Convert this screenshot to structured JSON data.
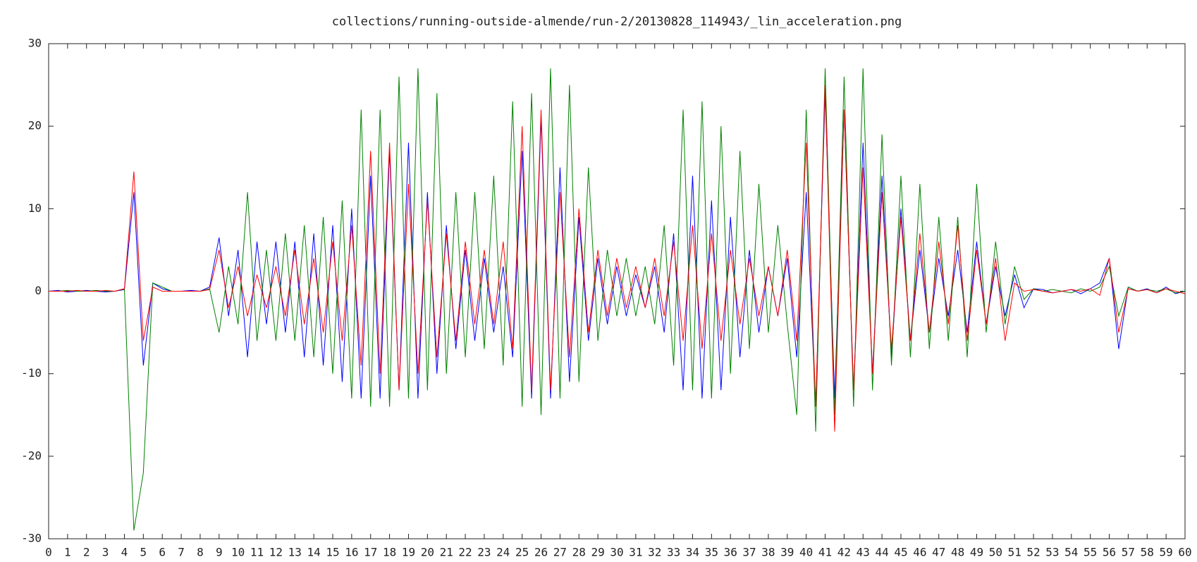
{
  "chart_data": {
    "type": "line",
    "title": "collections/running-outside-almende/run-2/20130828_114943/_lin_acceleration.png",
    "x": [
      0,
      0.5,
      1,
      1.5,
      2,
      2.5,
      3,
      3.5,
      4,
      4.5,
      5,
      5.5,
      6,
      6.5,
      7,
      7.5,
      8,
      8.5,
      9,
      9.5,
      10,
      10.5,
      11,
      11.5,
      12,
      12.5,
      13,
      13.5,
      14,
      14.5,
      15,
      15.5,
      16,
      16.5,
      17,
      17.5,
      18,
      18.5,
      19,
      19.5,
      20,
      20.5,
      21,
      21.5,
      22,
      22.5,
      23,
      23.5,
      24,
      24.5,
      25,
      25.5,
      26,
      26.5,
      27,
      27.5,
      28,
      28.5,
      29,
      29.5,
      30,
      30.5,
      31,
      31.5,
      32,
      32.5,
      33,
      33.5,
      34,
      34.5,
      35,
      35.5,
      36,
      36.5,
      37,
      37.5,
      38,
      38.5,
      39,
      39.5,
      40,
      40.5,
      41,
      41.5,
      42,
      42.5,
      43,
      43.5,
      44,
      44.5,
      45,
      45.5,
      46,
      46.5,
      47,
      47.5,
      48,
      48.5,
      49,
      49.5,
      50,
      50.5,
      51,
      51.5,
      52,
      52.5,
      53,
      53.5,
      54,
      54.5,
      55,
      55.5,
      56,
      56.5,
      57,
      57.5,
      58,
      58.5,
      59,
      59.5,
      60
    ],
    "series": [
      {
        "color": "#0000ff",
        "values": [
          0,
          0.1,
          -0.1,
          0,
          0.1,
          0,
          -0.1,
          0,
          0.2,
          12,
          -9,
          1,
          0.3,
          0,
          0,
          0.1,
          0,
          0.5,
          6.5,
          -3,
          5,
          -8,
          6,
          -4,
          6,
          -5,
          6,
          -8,
          7,
          -9,
          8,
          -11,
          10,
          -13,
          14,
          -13,
          17,
          -12,
          18,
          -13,
          12,
          -10,
          8,
          -7,
          5,
          -6,
          4,
          -5,
          3,
          -8,
          17,
          -13,
          21,
          -13,
          15,
          -11,
          9,
          -6,
          4,
          -4,
          3,
          -3,
          2,
          -2,
          3,
          -5,
          7,
          -12,
          14,
          -13,
          11,
          -12,
          9,
          -8,
          5,
          -5,
          3,
          -3,
          4,
          -8,
          12,
          -14,
          24,
          -13,
          22,
          -12,
          18,
          -10,
          14,
          -8,
          10,
          -6,
          5,
          -5,
          4,
          -3,
          5,
          -5,
          6,
          -4,
          3,
          -3,
          2,
          -2,
          0.3,
          0.2,
          -0.2,
          0,
          0.2,
          -0.3,
          0.3,
          1,
          4,
          -7,
          0.5,
          0,
          0.3,
          -0.2,
          0.5,
          -0.3,
          0
        ]
      },
      {
        "color": "#008000",
        "values": [
          0,
          0,
          0.1,
          0,
          0,
          0.1,
          0,
          0,
          0.3,
          -29,
          -22,
          1,
          0.5,
          0,
          0,
          0,
          0,
          0.3,
          -5,
          3,
          -4,
          12,
          -6,
          5,
          -6,
          7,
          -6,
          8,
          -8,
          9,
          -10,
          11,
          -13,
          22,
          -14,
          22,
          -14,
          26,
          -13,
          27,
          -12,
          24,
          -10,
          12,
          -8,
          12,
          -7,
          14,
          -9,
          23,
          -14,
          24,
          -15,
          27,
          -13,
          25,
          -11,
          15,
          -6,
          5,
          -3,
          4,
          -3,
          3,
          -4,
          8,
          -9,
          22,
          -12,
          23,
          -13,
          20,
          -10,
          17,
          -7,
          13,
          -5,
          8,
          -4,
          -15,
          22,
          -17,
          27,
          -15,
          26,
          -14,
          27,
          -12,
          19,
          -9,
          14,
          -8,
          13,
          -7,
          9,
          -6,
          9,
          -8,
          13,
          -5,
          6,
          -4,
          3,
          -1,
          0.3,
          0,
          0.2,
          0,
          -0.2,
          0.3,
          0,
          0.5,
          3,
          -3,
          0.5,
          0,
          0.2,
          0,
          0.3,
          -0.2,
          0
        ]
      },
      {
        "color": "#ff0000",
        "values": [
          0,
          0,
          0,
          0.1,
          0,
          0,
          0.1,
          0,
          0.3,
          14.5,
          -6,
          0.5,
          0,
          0,
          0,
          0,
          0,
          0.2,
          5,
          -2,
          3,
          -3,
          2,
          -2,
          3,
          -3,
          5,
          -4,
          4,
          -5,
          6,
          -6,
          8,
          -9,
          17,
          -10,
          18,
          -12,
          13,
          -10,
          11,
          -8,
          7,
          -6,
          6,
          -4,
          5,
          -4,
          6,
          -7,
          20,
          -12,
          22,
          -12,
          12,
          -8,
          10,
          -5,
          5,
          -3,
          4,
          -2,
          3,
          -2,
          4,
          -3,
          6,
          -6,
          8,
          -7,
          7,
          -6,
          5,
          -4,
          4,
          -3,
          3,
          -3,
          5,
          -6,
          18,
          -14,
          25,
          -17,
          22,
          -12,
          15,
          -10,
          12,
          -7,
          9,
          -6,
          7,
          -5,
          6,
          -4,
          8,
          -6,
          5,
          -4,
          4,
          -6,
          1,
          0,
          0.2,
          0,
          -0.2,
          0,
          0.2,
          0,
          0.3,
          -0.5,
          4,
          -5,
          0.3,
          0,
          0.2,
          -0.2,
          0.3,
          0,
          -0.3
        ]
      }
    ],
    "xlim": [
      0,
      60
    ],
    "ylim": [
      -30,
      30
    ],
    "xticks": [
      0,
      1,
      2,
      3,
      4,
      5,
      6,
      7,
      8,
      9,
      10,
      11,
      12,
      13,
      14,
      15,
      16,
      17,
      18,
      19,
      20,
      21,
      22,
      23,
      24,
      25,
      26,
      27,
      28,
      29,
      30,
      31,
      32,
      33,
      34,
      35,
      36,
      37,
      38,
      39,
      40,
      41,
      42,
      43,
      44,
      45,
      46,
      47,
      48,
      49,
      50,
      51,
      52,
      53,
      54,
      55,
      56,
      57,
      58,
      59,
      60
    ],
    "yticks": [
      -30,
      -20,
      -10,
      0,
      10,
      20,
      30
    ],
    "grid": false
  }
}
